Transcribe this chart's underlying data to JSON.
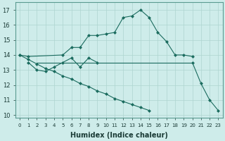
{
  "xlabel": "Humidex (Indice chaleur)",
  "xlim": [
    -0.5,
    23.5
  ],
  "ylim": [
    9.8,
    17.5
  ],
  "yticks": [
    10,
    11,
    12,
    13,
    14,
    15,
    16,
    17
  ],
  "xticks": [
    0,
    1,
    2,
    3,
    4,
    5,
    6,
    7,
    8,
    9,
    10,
    11,
    12,
    13,
    14,
    15,
    16,
    17,
    18,
    19,
    20,
    21,
    22,
    23
  ],
  "bg_color": "#ceecea",
  "grid_color": "#aed4d0",
  "line_color": "#1a6b5e",
  "line_arc": {
    "x": [
      0,
      1,
      5,
      6,
      7,
      8,
      9,
      10,
      11,
      12,
      13,
      14,
      15,
      16,
      17,
      18,
      19,
      20
    ],
    "y": [
      14.0,
      13.9,
      14.0,
      14.5,
      14.5,
      15.3,
      15.3,
      15.4,
      15.5,
      16.5,
      16.6,
      17.0,
      16.5,
      15.5,
      14.9,
      14.0,
      14.0,
      13.9
    ]
  },
  "line_diag": {
    "x": [
      0,
      1,
      2,
      3,
      4,
      5,
      6,
      7,
      8,
      9,
      10,
      11,
      12,
      13,
      14,
      15,
      16,
      17,
      18,
      19,
      20,
      21,
      22,
      23
    ],
    "y": [
      14.0,
      13.7,
      13.4,
      13.1,
      12.9,
      12.6,
      12.4,
      12.1,
      11.9,
      11.6,
      11.4,
      11.1,
      10.9,
      10.7,
      10.5,
      10.3,
      null,
      null,
      null,
      null,
      null,
      null,
      null,
      null
    ]
  },
  "line_flat": {
    "x": [
      2,
      3,
      4,
      5,
      6,
      7,
      8,
      9,
      10,
      11,
      12,
      13,
      14,
      15,
      16,
      17,
      18,
      19,
      20
    ],
    "y": [
      13.5,
      13.5,
      13.5,
      13.5,
      13.5,
      13.5,
      13.5,
      13.5,
      13.5,
      13.5,
      13.5,
      13.5,
      13.5,
      13.5,
      13.5,
      13.5,
      13.5,
      13.5,
      13.5
    ]
  },
  "line_zigzag": {
    "x": [
      1,
      2,
      3,
      4,
      5,
      6,
      7,
      8,
      9
    ],
    "y": [
      13.5,
      13.0,
      12.9,
      13.2,
      13.5,
      13.8,
      13.2,
      13.8,
      13.5
    ]
  },
  "line_end": {
    "x": [
      20,
      21,
      22,
      23
    ],
    "y": [
      13.5,
      12.1,
      11.0,
      10.3
    ]
  }
}
